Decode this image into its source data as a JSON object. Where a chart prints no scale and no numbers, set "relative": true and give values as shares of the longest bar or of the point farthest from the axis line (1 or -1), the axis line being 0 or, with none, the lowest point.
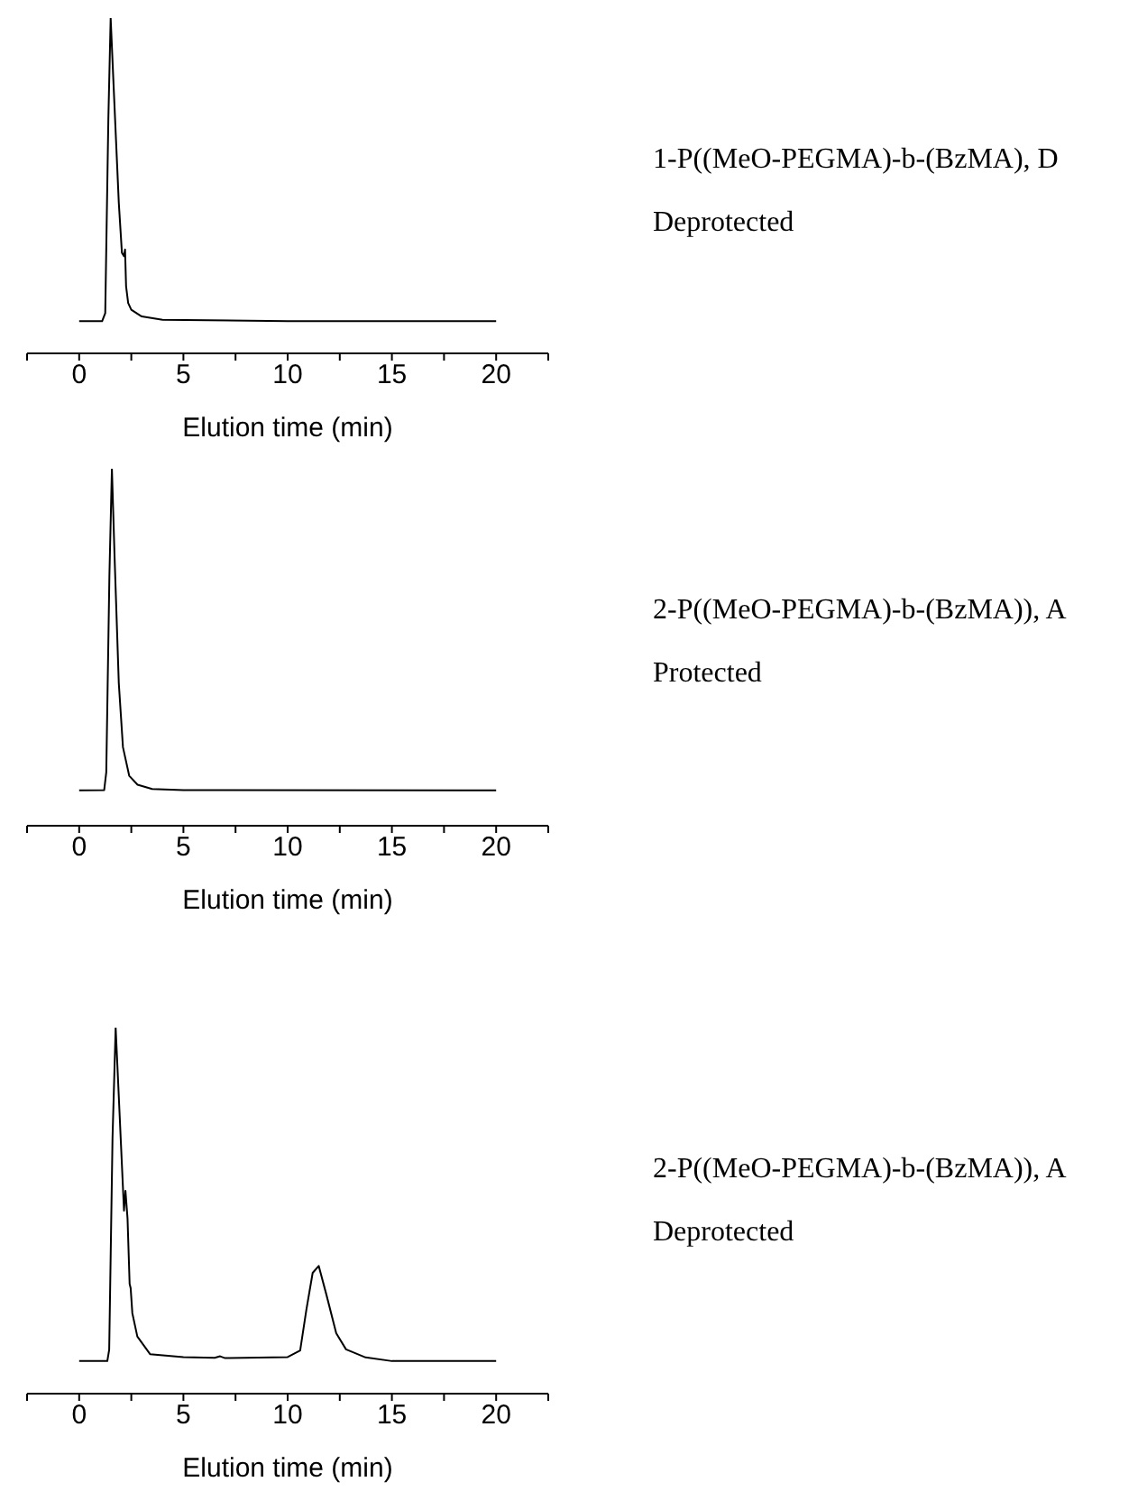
{
  "chart_data": [
    {
      "type": "line",
      "relative": true,
      "xlabel": "Elution time (min)",
      "color": "#000000",
      "annotations": [
        "1-P((MeO-PEGMA)-b-(BzMA), D",
        "Deprotected"
      ],
      "xlim": [
        -2.5,
        22.5
      ],
      "xticks": [
        {
          "value": -2.5,
          "label": null
        },
        0,
        {
          "value": 2.5,
          "label": null
        },
        5,
        {
          "value": 7.5,
          "label": null
        },
        10,
        {
          "value": 12.5,
          "label": null
        },
        15,
        {
          "value": 17.5,
          "label": null
        },
        20,
        {
          "value": 22.5,
          "label": null
        }
      ],
      "x": [
        0,
        1.1,
        1.25,
        1.4,
        1.51,
        1.65,
        1.9,
        2.05,
        2.15,
        2.2,
        2.25,
        2.35,
        2.5,
        3,
        4,
        10,
        20
      ],
      "values": [
        0.096,
        0.096,
        0.12,
        0.7,
        1,
        0.8,
        0.45,
        0.3,
        0.29,
        0.31,
        0.2,
        0.15,
        0.13,
        0.11,
        0.1,
        0.096,
        0.096
      ]
    },
    {
      "type": "line",
      "relative": true,
      "xlabel": "Elution time (min)",
      "color": "#000000",
      "annotations": [
        "2-P((MeO-PEGMA)-b-(BzMA)), A",
        "Protected"
      ],
      "xlim": [
        -2.5,
        22.5
      ],
      "xticks": [
        {
          "value": -2.5,
          "label": null
        },
        0,
        {
          "value": 2.5,
          "label": null
        },
        5,
        {
          "value": 7.5,
          "label": null
        },
        10,
        {
          "value": 12.5,
          "label": null
        },
        15,
        {
          "value": 17.5,
          "label": null
        },
        20,
        {
          "value": 22.5,
          "label": null
        }
      ],
      "x": [
        0,
        1.2,
        1.3,
        1.45,
        1.57,
        1.7,
        1.9,
        2.1,
        2.4,
        2.8,
        3.5,
        5,
        20
      ],
      "values": [
        0.099,
        0.1,
        0.15,
        0.7,
        1,
        0.75,
        0.4,
        0.22,
        0.14,
        0.115,
        0.103,
        0.1,
        0.099
      ]
    },
    {
      "type": "line",
      "relative": true,
      "xlabel": "Elution time (min)",
      "color": "#000000",
      "annotations": [
        "2-P((MeO-PEGMA)-b-(BzMA)), A",
        "Deprotected"
      ],
      "xlim": [
        -2.5,
        22.5
      ],
      "xticks": [
        {
          "value": -2.5,
          "label": null
        },
        0,
        {
          "value": 2.5,
          "label": null
        },
        5,
        {
          "value": 7.5,
          "label": null
        },
        10,
        {
          "value": 12.5,
          "label": null
        },
        15,
        {
          "value": 17.5,
          "label": null
        },
        20,
        {
          "value": 22.5,
          "label": null
        }
      ],
      "x": [
        0,
        1.35,
        1.44,
        1.6,
        1.75,
        1.95,
        2.15,
        2.22,
        2.32,
        2.42,
        2.47,
        2.55,
        2.79,
        3.4,
        5,
        6.5,
        6.76,
        7,
        10,
        10.6,
        10.9,
        11.2,
        11.49,
        11.86,
        12.33,
        12.8,
        13.74,
        15,
        20
      ],
      "values": [
        0.089,
        0.089,
        0.12,
        0.7,
        1,
        0.75,
        0.5,
        0.554,
        0.478,
        0.3,
        0.288,
        0.22,
        0.156,
        0.108,
        0.1,
        0.098,
        0.102,
        0.097,
        0.1,
        0.118,
        0.23,
        0.33,
        0.349,
        0.27,
        0.165,
        0.121,
        0.099,
        0.089,
        0.089
      ]
    }
  ]
}
